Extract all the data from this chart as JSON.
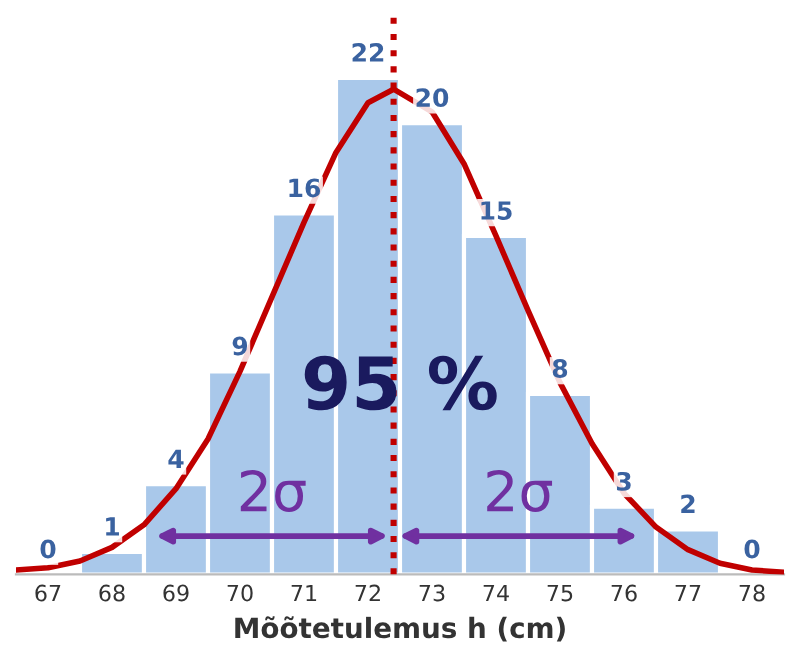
{
  "chart_data": {
    "type": "histogram",
    "xlabel": "Mõõtetulemus h (cm)",
    "bins": [
      66.5,
      67.5,
      68.5,
      69.5,
      70.5,
      71.5,
      72.5,
      73.5,
      74.5,
      75.5,
      76.5,
      77.5,
      78.5
    ],
    "values": [
      0,
      1,
      4,
      9,
      16,
      22,
      20,
      15,
      8,
      3,
      2,
      0
    ],
    "color": "#a9c8ea",
    "value_labels": [
      "0",
      "1",
      "4",
      "9",
      "16",
      "22",
      "20",
      "15",
      "8",
      "3",
      "2",
      "0"
    ],
    "series": [
      {
        "type": "line",
        "color": "#c00000",
        "x": [
          66.5,
          67,
          67.5,
          68,
          68.5,
          69,
          69.5,
          70,
          70.5,
          71,
          71.5,
          72,
          72.4,
          73,
          73.5,
          74,
          74.5,
          75,
          75.5,
          76,
          76.5,
          77,
          77.5,
          78,
          78.5
        ],
        "values": [
          0.2,
          0.3,
          0.6,
          1.2,
          2.2,
          3.8,
          6,
          9,
          12.3,
          15.6,
          18.7,
          20.9,
          21.5,
          20.5,
          18.2,
          15,
          11.7,
          8.5,
          5.8,
          3.6,
          2.1,
          1.1,
          0.5,
          0.2,
          0.1
        ]
      }
    ],
    "xlim": [
      66.5,
      78.5
    ],
    "xticks": [
      67,
      68,
      69,
      70,
      71,
      72,
      73,
      74,
      75,
      76,
      77,
      78
    ],
    "ref_lines": [
      {
        "axis": "x",
        "value": 72.4,
        "color": "#c00000",
        "line_style": "dotted"
      }
    ],
    "annotations": [
      "95 %",
      {
        "text": "2σ",
        "x": 70.5,
        "y": 1.7
      },
      {
        "text": "2σ",
        "x": 74.35,
        "y": 1.7
      }
    ],
    "tick_labels": "x",
    "grid": false,
    "legend": false
  }
}
